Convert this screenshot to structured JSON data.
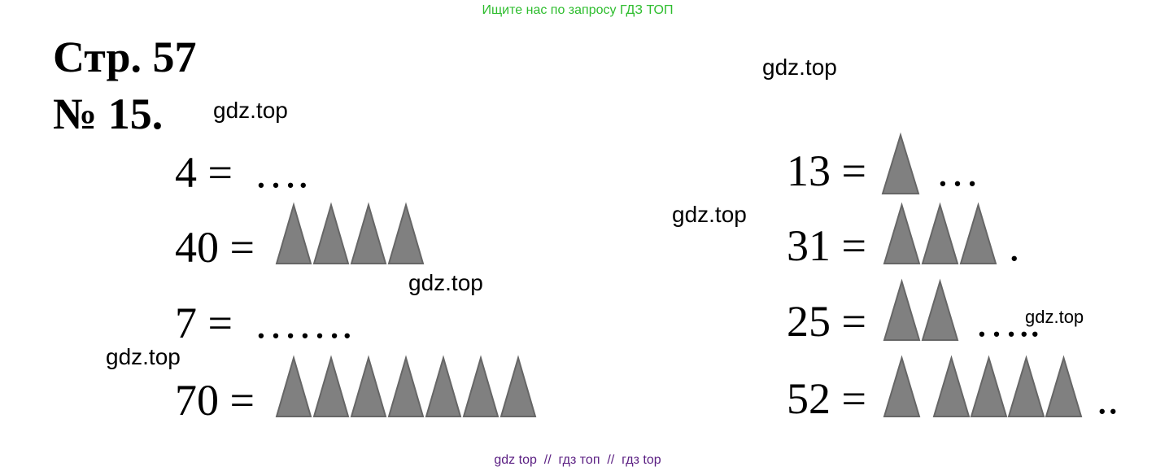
{
  "banner": "Ищите нас по запросу ГДЗ ТОП",
  "page_title": "Стр. 57",
  "task_number": "№ 15.",
  "left_equations": [
    {
      "lhs": "4 =",
      "tail": "…."
    },
    {
      "lhs": "40 ="
    },
    {
      "lhs": "7 =",
      "tail": "……."
    },
    {
      "lhs": "70 ="
    }
  ],
  "right_equations": [
    {
      "lhs": "13 =",
      "tail": "…"
    },
    {
      "lhs": "31 =",
      "tail": "."
    },
    {
      "lhs": "25 =",
      "tail": "….."
    },
    {
      "lhs": "52 =",
      "tail": ".."
    }
  ],
  "watermarks": [
    "gdz.top",
    "gdz.top",
    "gdz.top",
    "gdz.top",
    "gdz.top",
    "gdz.top"
  ],
  "footer": "gdz top  //  гдз топ  //  гдз top"
}
